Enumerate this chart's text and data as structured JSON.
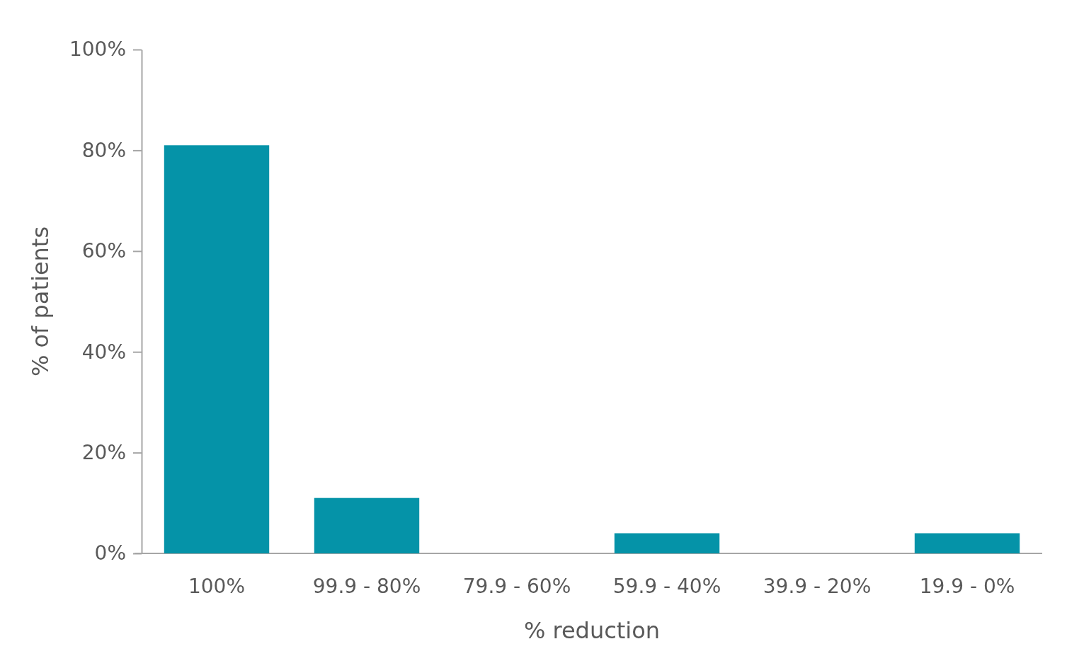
{
  "chart_data": {
    "type": "bar",
    "xlabel": "% reduction",
    "ylabel": "% of patients",
    "categories": [
      "100%",
      "99.9 - 80%",
      "79.9 - 60%",
      "59.9 - 40%",
      "39.9 - 20%",
      "19.9 - 0%"
    ],
    "values": [
      81,
      11,
      0,
      4,
      0,
      4
    ],
    "color": "#0593a8",
    "ylim": [
      0,
      100
    ],
    "yticks": [
      {
        "value": 0,
        "label": "0%"
      },
      {
        "value": 20,
        "label": "20%"
      },
      {
        "value": 40,
        "label": "40%"
      },
      {
        "value": 60,
        "label": "60%"
      },
      {
        "value": 80,
        "label": "80%"
      },
      {
        "value": 100,
        "label": "100%"
      }
    ],
    "grid": false
  }
}
